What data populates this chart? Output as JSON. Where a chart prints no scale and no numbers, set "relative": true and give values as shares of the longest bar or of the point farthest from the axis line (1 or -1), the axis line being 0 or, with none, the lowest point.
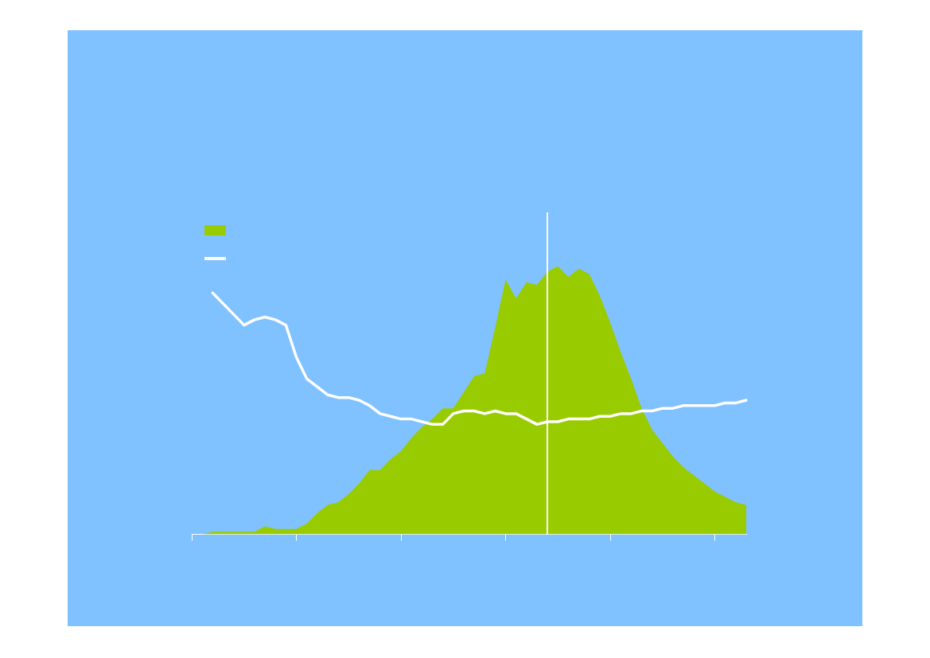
{
  "chart_data": {
    "type": "area",
    "relative": true,
    "categories": [
      null,
      null,
      null,
      null,
      null,
      null,
      null,
      null,
      null,
      null,
      null,
      null,
      null,
      null,
      null,
      null,
      null,
      null,
      null,
      null,
      null,
      null,
      null,
      null,
      null,
      null,
      null,
      null,
      null,
      null,
      null,
      null,
      null,
      null,
      null,
      null,
      null,
      null,
      null,
      null,
      null,
      null,
      null,
      null,
      null,
      null,
      null,
      null,
      null,
      null,
      null,
      null,
      null,
      null
    ],
    "series": [
      {
        "color": "#99cc00",
        "values": [
          0,
          0,
          0.01,
          0.01,
          0.01,
          0.01,
          0.01,
          0.03,
          0.02,
          0.02,
          0.02,
          0.04,
          0.08,
          0.11,
          0.12,
          0.15,
          0.19,
          0.24,
          0.24,
          0.28,
          0.31,
          0.36,
          0.4,
          0.43,
          0.47,
          0.47,
          0.53,
          0.59,
          0.6,
          0.77,
          0.95,
          0.88,
          0.94,
          0.93,
          0.98,
          1,
          0.96,
          0.99,
          0.97,
          0.89,
          0.79,
          0.68,
          0.58,
          0.47,
          0.39,
          0.34,
          0.29,
          0.25,
          0.22,
          0.19,
          0.16,
          0.14,
          0.12,
          0.11
        ]
      },
      {
        "type": "line",
        "color": "#ffffff",
        "values": [
          null,
          null,
          0.9,
          0.86,
          0.82,
          0.78,
          0.8,
          0.81,
          0.8,
          0.78,
          0.66,
          0.58,
          0.55,
          0.52,
          0.51,
          0.51,
          0.5,
          0.48,
          0.45,
          0.44,
          0.43,
          0.43,
          0.42,
          0.41,
          0.41,
          0.45,
          0.46,
          0.46,
          0.45,
          0.46,
          0.45,
          0.45,
          0.43,
          0.41,
          0.42,
          0.42,
          0.43,
          0.43,
          0.43,
          0.44,
          0.44,
          0.45,
          0.45,
          0.46,
          0.46,
          0.47,
          0.47,
          0.48,
          0.48,
          0.48,
          0.48,
          0.49,
          0.49,
          0.5
        ]
      }
    ]
  }
}
